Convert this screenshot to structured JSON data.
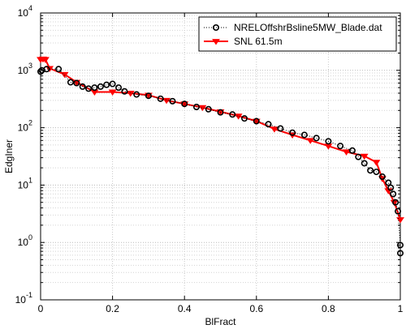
{
  "chart_data": {
    "type": "line",
    "xlabel": "BlFract",
    "ylabel": "EdgIner",
    "xlim": [
      0,
      1
    ],
    "ylim": [
      0.1,
      10000
    ],
    "yscale": "log",
    "xticks": [
      "0",
      "0.2",
      "0.4",
      "0.6",
      "0.8",
      "1"
    ],
    "yticks": [
      {
        "base": "10",
        "exp": "-1",
        "value": 0.1
      },
      {
        "base": "10",
        "exp": "0",
        "value": 1
      },
      {
        "base": "10",
        "exp": "1",
        "value": 10
      },
      {
        "base": "10",
        "exp": "2",
        "value": 100
      },
      {
        "base": "10",
        "exp": "3",
        "value": 1000
      },
      {
        "base": "10",
        "exp": "4",
        "value": 10000
      }
    ],
    "grid": true,
    "legend_position": "top-right",
    "series": [
      {
        "name": "NRELOffshrBsline5MW_Blade.dat",
        "color": "#000000",
        "marker": "circle",
        "line": "dotted",
        "x": [
          0.0,
          0.0033,
          0.0167,
          0.05,
          0.0833,
          0.1,
          0.1167,
          0.1333,
          0.15,
          0.1667,
          0.1833,
          0.2,
          0.2167,
          0.2333,
          0.2667,
          0.3,
          0.3333,
          0.3667,
          0.4,
          0.4333,
          0.4667,
          0.5,
          0.5333,
          0.5667,
          0.6,
          0.6333,
          0.6667,
          0.7,
          0.7333,
          0.7667,
          0.8,
          0.8333,
          0.8667,
          0.8833,
          0.9,
          0.9167,
          0.9333,
          0.95,
          0.9667,
          0.9733,
          0.98,
          0.9867,
          0.9933,
          1.0,
          1.0
        ],
        "y": [
          950,
          1000,
          1050,
          1050,
          620,
          600,
          520,
          480,
          500,
          520,
          560,
          580,
          500,
          430,
          380,
          360,
          320,
          290,
          260,
          230,
          210,
          185,
          170,
          145,
          130,
          115,
          97,
          82,
          75,
          66,
          58,
          48,
          40,
          31,
          24,
          18,
          17,
          14,
          11,
          9,
          7,
          5,
          3.5,
          0.9,
          0.65
        ]
      },
      {
        "name": "SNL 61.5m",
        "color": "#ff0000",
        "marker": "triangle-down",
        "line": "solid",
        "x": [
          0.0,
          0.0067,
          0.0133,
          0.025,
          0.0667,
          0.1,
          0.15,
          0.2,
          0.25,
          0.3,
          0.35,
          0.4,
          0.45,
          0.5,
          0.55,
          0.6,
          0.65,
          0.7,
          0.75,
          0.8,
          0.85,
          0.9,
          0.9333,
          0.95,
          0.9667,
          0.9833,
          1.0
        ],
        "y": [
          1550,
          1580,
          1550,
          1080,
          850,
          620,
          420,
          420,
          400,
          370,
          300,
          260,
          225,
          190,
          160,
          130,
          95,
          75,
          60,
          48,
          38,
          32,
          25,
          13,
          8,
          5,
          2.5
        ]
      }
    ]
  }
}
